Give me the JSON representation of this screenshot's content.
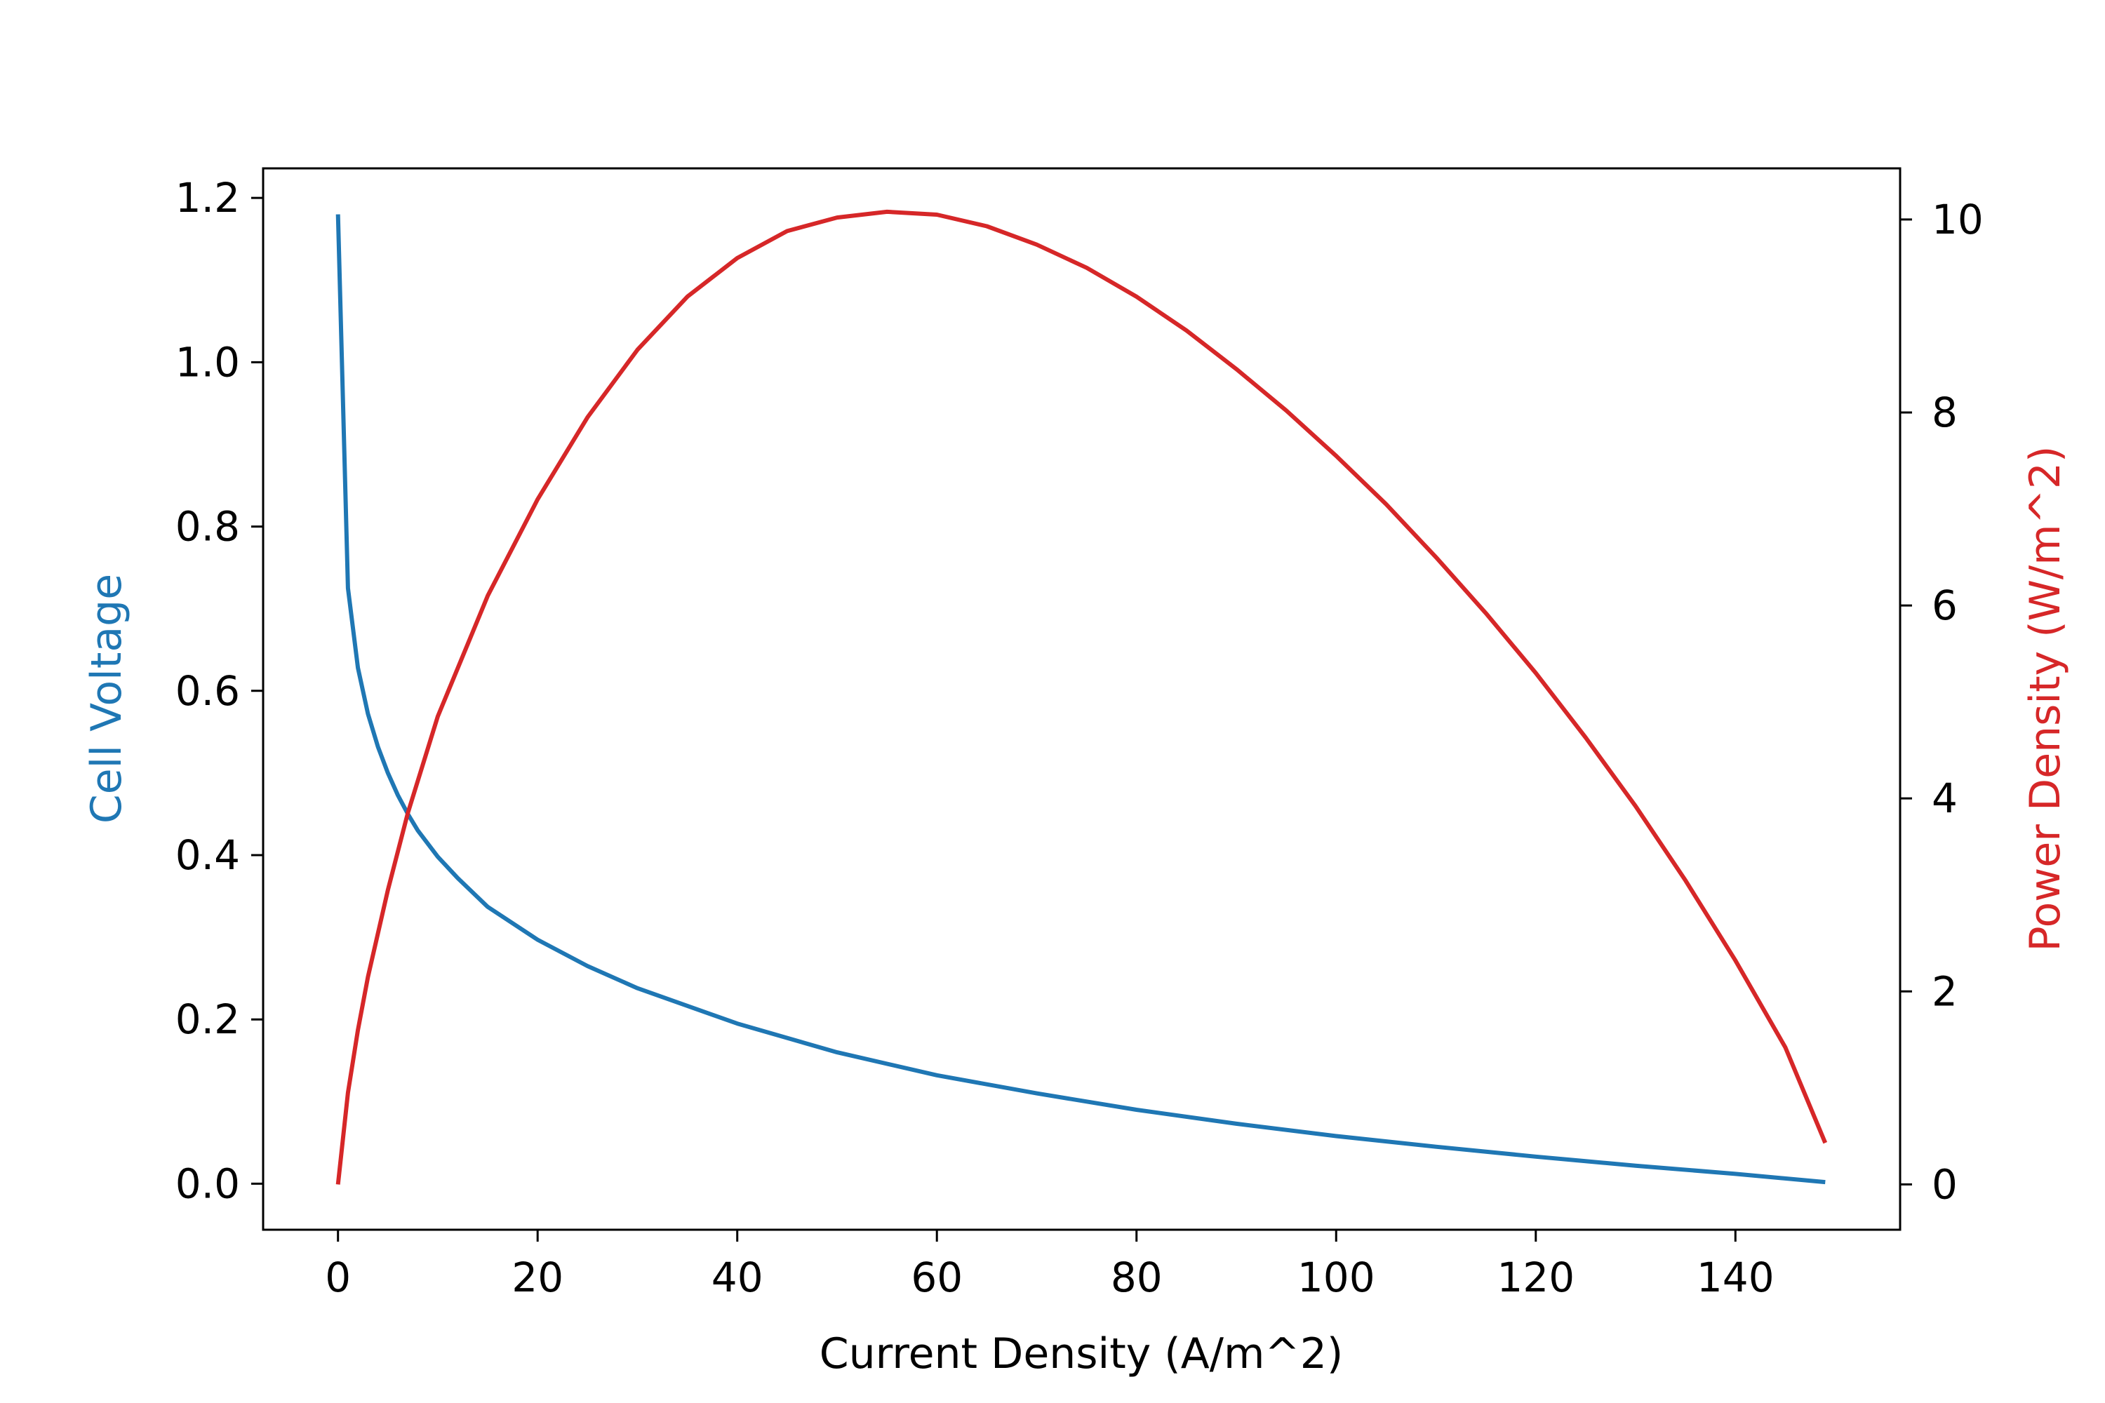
{
  "chart_data": {
    "type": "line",
    "xlabel": "Current Density (A/m^2)",
    "ylabel_left": "Cell Voltage",
    "ylabel_right": "Power Density (W/m^2)",
    "xlim": [
      -7.5,
      156.5
    ],
    "ylim_left": [
      -0.056,
      1.236
    ],
    "ylim_right": [
      -0.47,
      10.53
    ],
    "x_ticks": [
      0,
      20,
      40,
      60,
      80,
      100,
      120,
      140
    ],
    "x_tick_labels": [
      "0",
      "20",
      "40",
      "60",
      "80",
      "100",
      "120",
      "140"
    ],
    "y_left_ticks": [
      0.0,
      0.2,
      0.4,
      0.6,
      0.8,
      1.0,
      1.2
    ],
    "y_left_tick_labels": [
      "0.0",
      "0.2",
      "0.4",
      "0.6",
      "0.8",
      "1.0",
      "1.2"
    ],
    "y_right_ticks": [
      0,
      2,
      4,
      6,
      8,
      10
    ],
    "y_right_tick_labels": [
      "0",
      "2",
      "4",
      "6",
      "8",
      "10"
    ],
    "grid": false,
    "legend": "none",
    "colors": {
      "voltage": "#1f77b4",
      "power": "#d62728",
      "axes": "#000000"
    },
    "series": [
      {
        "axis": "left",
        "color": "#1f77b4",
        "x": [
          0,
          1,
          2,
          3,
          4,
          5,
          6,
          7,
          8,
          10,
          12,
          15,
          20,
          25,
          30,
          40,
          50,
          60,
          70,
          80,
          90,
          100,
          110,
          120,
          130,
          140,
          149
        ],
        "y": [
          1.18,
          0.725,
          0.628,
          0.572,
          0.532,
          0.5,
          0.473,
          0.45,
          0.43,
          0.398,
          0.372,
          0.337,
          0.297,
          0.265,
          0.238,
          0.195,
          0.16,
          0.132,
          0.11,
          0.09,
          0.073,
          0.058,
          0.045,
          0.033,
          0.022,
          0.012,
          0.002
        ]
      },
      {
        "axis": "right",
        "color": "#d62728",
        "x": [
          0,
          1,
          2,
          3,
          5,
          7,
          10,
          15,
          20,
          25,
          30,
          35,
          40,
          45,
          50,
          55,
          60,
          65,
          70,
          75,
          80,
          85,
          90,
          95,
          100,
          105,
          110,
          115,
          120,
          125,
          130,
          135,
          140,
          145,
          149
        ],
        "y": [
          0,
          0.95,
          1.6,
          2.15,
          3.05,
          3.85,
          4.85,
          6.1,
          7.1,
          7.95,
          8.65,
          9.2,
          9.6,
          9.88,
          10.02,
          10.08,
          10.05,
          9.93,
          9.74,
          9.5,
          9.2,
          8.85,
          8.45,
          8.02,
          7.55,
          7.05,
          6.5,
          5.92,
          5.3,
          4.63,
          3.92,
          3.15,
          2.32,
          1.42,
          0.43
        ]
      }
    ]
  }
}
